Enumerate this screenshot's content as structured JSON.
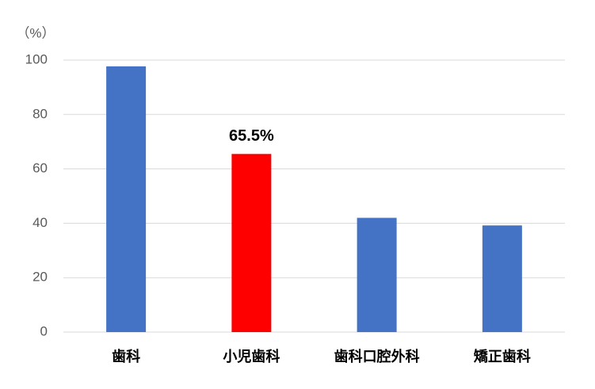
{
  "chart_data": {
    "type": "bar",
    "y_unit_label": "（%）",
    "categories": [
      "歯科",
      "小児歯科",
      "歯科口腔外科",
      "矯正歯科"
    ],
    "values": [
      97.7,
      65.5,
      42,
      39.2
    ],
    "value_labels": [
      null,
      "65.5%",
      null,
      null
    ],
    "colors": [
      "#4472c4",
      "#ff0000",
      "#4472c4",
      "#4472c4"
    ],
    "ylim": [
      0,
      100
    ],
    "yticks": [
      0,
      20,
      40,
      60,
      80,
      100
    ],
    "grid": true
  }
}
